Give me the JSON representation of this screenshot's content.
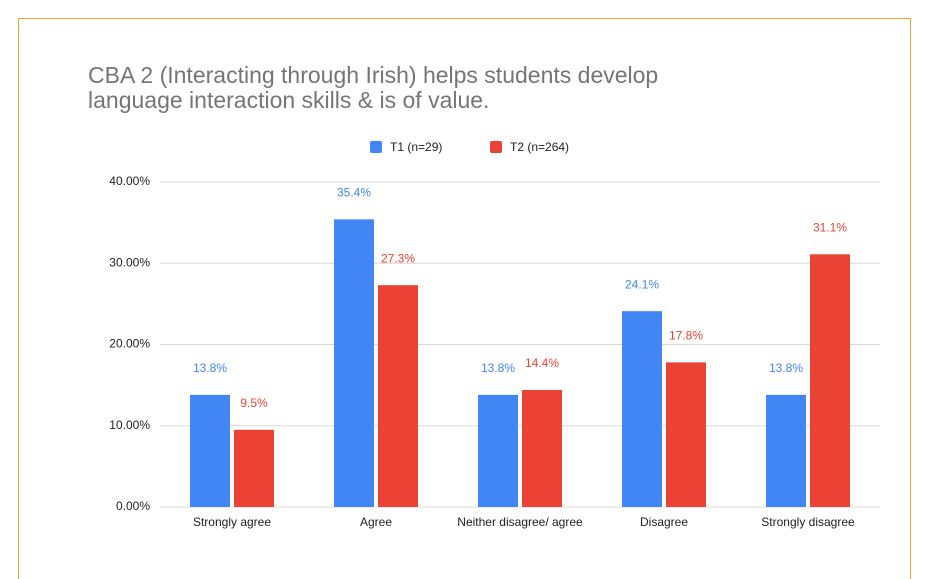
{
  "chart_data": {
    "type": "bar",
    "title": "CBA 2 (Interacting through Irish) helps students develop language interaction skills & is of value.",
    "categories": [
      "Strongly agree",
      "Agree",
      "Neither disagree/ agree",
      "Disagree",
      "Strongly disagree"
    ],
    "series": [
      {
        "name": "T1 (n=29)",
        "color": "#4285f4",
        "values": [
          13.8,
          35.4,
          13.8,
          24.1,
          13.8
        ],
        "value_labels": [
          "13.8%",
          "35.4%",
          "13.8%",
          "24.1%",
          "13.8%"
        ]
      },
      {
        "name": "T2 (n=264)",
        "color": "#ea4335",
        "values": [
          9.5,
          27.3,
          14.4,
          17.8,
          31.1
        ],
        "value_labels": [
          "9.5%",
          "27.3%",
          "14.4%",
          "17.8%",
          "31.1%"
        ]
      }
    ],
    "ylim": [
      0,
      40
    ],
    "yticks": [
      {
        "value": 0,
        "label": "0.00%"
      },
      {
        "value": 10,
        "label": "10.00%"
      },
      {
        "value": 20,
        "label": "20.00%"
      },
      {
        "value": 30,
        "label": "30.00%"
      },
      {
        "value": 40,
        "label": "40.00%"
      }
    ],
    "grid": true,
    "legend": "top"
  }
}
